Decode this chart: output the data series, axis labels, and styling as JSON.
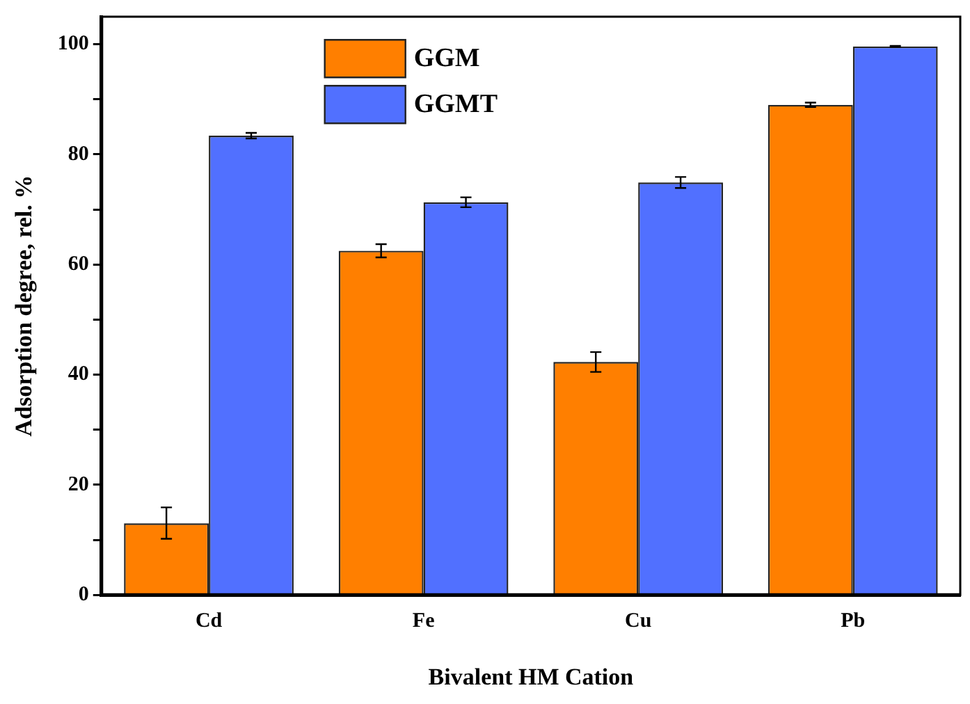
{
  "chart_data": {
    "type": "bar",
    "xlabel": "Bivalent HM Cation",
    "ylabel": "Adsorption degree, rel. %",
    "categories": [
      "Cd",
      "Fe",
      "Cu",
      "Pb"
    ],
    "series": [
      {
        "name": "GGM",
        "color": "#ff7f00",
        "values": [
          13.0,
          62.5,
          42.3,
          89.0
        ],
        "errors": [
          [
            10.2,
            15.9
          ],
          1.2,
          1.8,
          0.4
        ]
      },
      {
        "name": "GGMT",
        "color": "#5170ff",
        "values": [
          83.4,
          71.3,
          74.9,
          99.6
        ],
        "errors": [
          0.5,
          0.9,
          1.0,
          0.1
        ]
      }
    ],
    "ylim": [
      0,
      105
    ],
    "yticks": [
      0,
      {
        "value": 10,
        "label": null
      },
      20,
      {
        "value": 30,
        "label": null
      },
      40,
      {
        "value": 50,
        "label": null
      },
      60,
      {
        "value": 70,
        "label": null
      },
      80,
      {
        "value": 90,
        "label": null
      },
      100
    ],
    "grid": false,
    "legend": "top left"
  }
}
